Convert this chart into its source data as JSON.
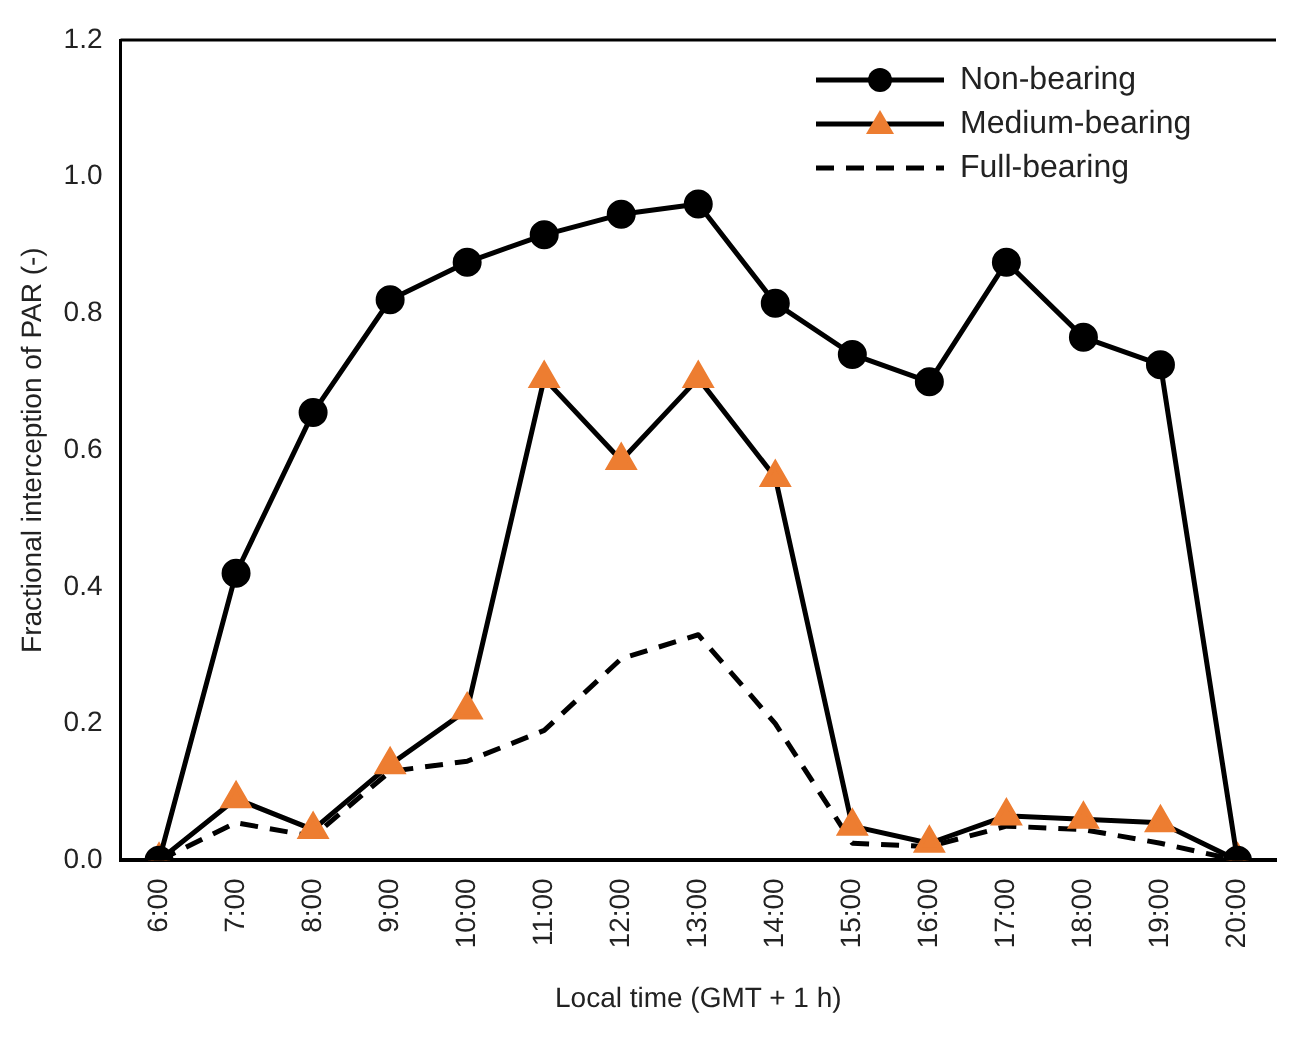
{
  "chart_data": {
    "type": "line",
    "xlabel": "Local time (GMT + 1 h)",
    "ylabel": "Fractional interception of PAR (-)",
    "categories": [
      "6:00",
      "7:00",
      "8:00",
      "9:00",
      "10:00",
      "11:00",
      "12:00",
      "13:00",
      "14:00",
      "15:00",
      "16:00",
      "17:00",
      "18:00",
      "19:00",
      "20:00"
    ],
    "series": [
      {
        "name": "Non-bearing",
        "color": "#000000",
        "marker": "circle",
        "line_style": "solid",
        "values": [
          0,
          0.42,
          0.655,
          0.82,
          0.875,
          0.915,
          0.945,
          0.96,
          0.815,
          0.74,
          0.7,
          0.875,
          0.765,
          0.725,
          0
        ]
      },
      {
        "name": "Medium-bearing",
        "color": "#ed7d31",
        "marker": "triangle",
        "line_style": "solid",
        "values": [
          0,
          0.09,
          0.045,
          0.14,
          0.22,
          0.705,
          0.585,
          0.705,
          0.56,
          0.05,
          0.025,
          0.065,
          0.06,
          0.055,
          0
        ]
      },
      {
        "name": "Full-bearing",
        "color": "#000000",
        "marker": "none",
        "line_style": "dashed",
        "values": [
          0,
          0.055,
          0.035,
          0.13,
          0.145,
          0.19,
          0.295,
          0.33,
          0.2,
          0.025,
          0.02,
          0.05,
          0.045,
          0.025,
          0
        ]
      }
    ],
    "ylim": [
      0,
      1.2
    ],
    "yticks": [
      {
        "value": 0,
        "label": "0.0"
      },
      {
        "value": 0.2,
        "label": "0.2"
      },
      {
        "value": 0.4,
        "label": "0.4"
      },
      {
        "value": 0.6,
        "label": "0.6"
      },
      {
        "value": 0.8,
        "label": "0.8"
      },
      {
        "value": 1,
        "label": "1.0"
      },
      {
        "value": 1.2,
        "label": "1.2"
      }
    ],
    "grid": false,
    "legend": "top right"
  }
}
